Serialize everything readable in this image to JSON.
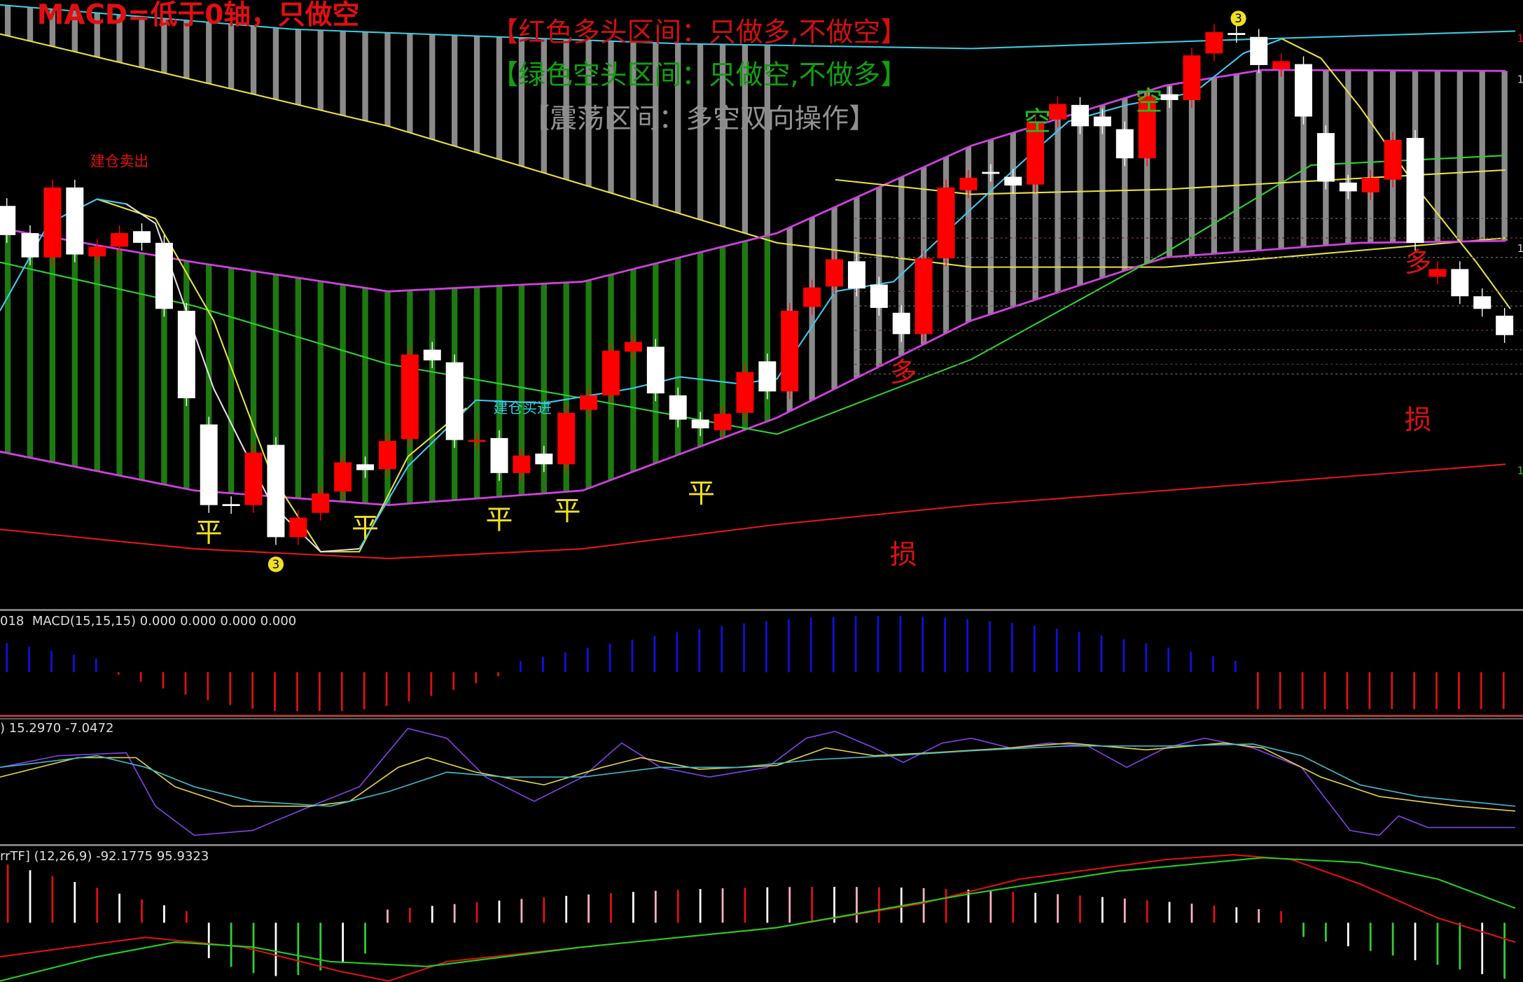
{
  "header": {
    "title": "MACD=低于0轴，只做空"
  },
  "legend": {
    "red_zone": "【红色多头区间：只做多,不做空】",
    "green_zone": "【绿色空头区间：只做空,不做多】",
    "range_zone": "【震荡区间：多空双向操作】"
  },
  "annotations": {
    "sell": "建仓卖出",
    "buy": "建仓买进",
    "close_marks": [
      "平",
      "平",
      "平",
      "平",
      "平"
    ],
    "long_marks": [
      "多",
      "多"
    ],
    "short_marks": [
      "空",
      "空"
    ],
    "stop_marks": [
      "损",
      "损"
    ],
    "wave_marks": [
      "3",
      "3"
    ]
  },
  "panels": {
    "macd": "018  MACD(15,15,15) 0.000 0.000 0.000 0.000",
    "oscillator": ") 15.2970 -7.0472",
    "trend": "rrTF] (12,26,9) -92.1775 95.9323"
  },
  "price_scale": [
    "1",
    "1",
    "1",
    "1"
  ]
}
